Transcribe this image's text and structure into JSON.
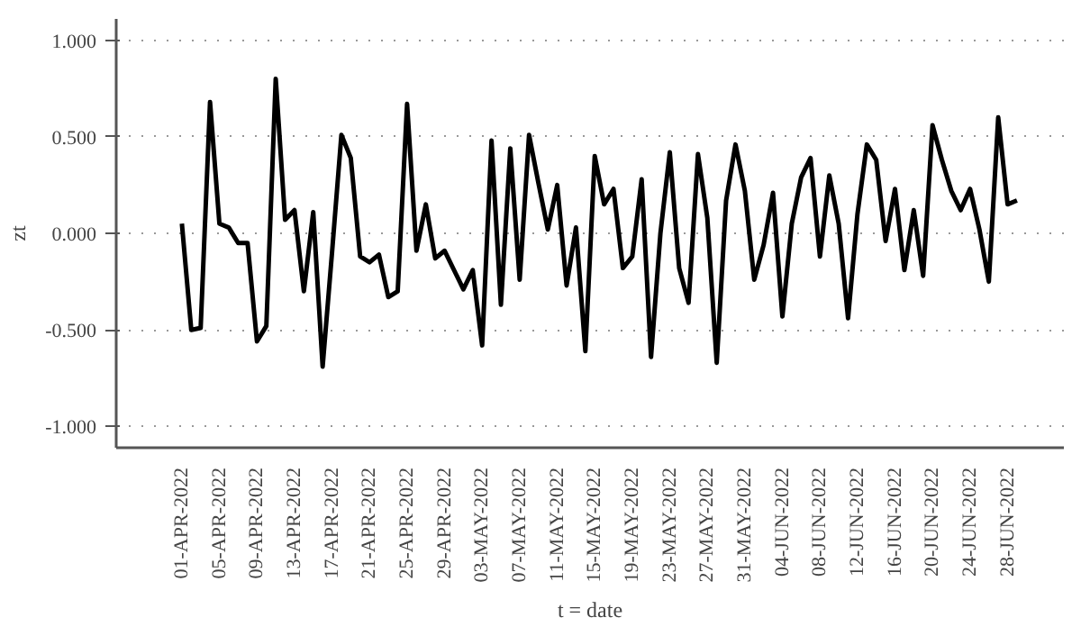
{
  "chart_data": {
    "type": "line",
    "xlabel": "t = date",
    "ylabel": "zt",
    "x": [
      "2022-04-01",
      "2022-04-02",
      "2022-04-03",
      "2022-04-04",
      "2022-04-05",
      "2022-04-06",
      "2022-04-07",
      "2022-04-08",
      "2022-04-09",
      "2022-04-10",
      "2022-04-11",
      "2022-04-12",
      "2022-04-13",
      "2022-04-14",
      "2022-04-15",
      "2022-04-16",
      "2022-04-17",
      "2022-04-18",
      "2022-04-19",
      "2022-04-20",
      "2022-04-21",
      "2022-04-22",
      "2022-04-23",
      "2022-04-24",
      "2022-04-25",
      "2022-04-26",
      "2022-04-27",
      "2022-04-28",
      "2022-04-29",
      "2022-04-30",
      "2022-05-01",
      "2022-05-02",
      "2022-05-03",
      "2022-05-04",
      "2022-05-05",
      "2022-05-06",
      "2022-05-07",
      "2022-05-08",
      "2022-05-09",
      "2022-05-10",
      "2022-05-11",
      "2022-05-12",
      "2022-05-13",
      "2022-05-14",
      "2022-05-15",
      "2022-05-16",
      "2022-05-17",
      "2022-05-18",
      "2022-05-19",
      "2022-05-20",
      "2022-05-21",
      "2022-05-22",
      "2022-05-23",
      "2022-05-24",
      "2022-05-25",
      "2022-05-26",
      "2022-05-27",
      "2022-05-28",
      "2022-05-29",
      "2022-05-30",
      "2022-05-31",
      "2022-06-01",
      "2022-06-02",
      "2022-06-03",
      "2022-06-04",
      "2022-06-05",
      "2022-06-06",
      "2022-06-07",
      "2022-06-08",
      "2022-06-09",
      "2022-06-10",
      "2022-06-11",
      "2022-06-12",
      "2022-06-13",
      "2022-06-14",
      "2022-06-15",
      "2022-06-16",
      "2022-06-17",
      "2022-06-18",
      "2022-06-19",
      "2022-06-20",
      "2022-06-21",
      "2022-06-22",
      "2022-06-23",
      "2022-06-24",
      "2022-06-25",
      "2022-06-26",
      "2022-06-27",
      "2022-06-28",
      "2022-06-29"
    ],
    "series": [
      {
        "color": "#000000",
        "values": [
          0.05,
          -0.5,
          -0.49,
          0.68,
          0.05,
          0.03,
          -0.05,
          -0.05,
          -0.56,
          -0.48,
          0.8,
          0.07,
          0.12,
          -0.3,
          0.11,
          -0.69,
          -0.1,
          0.51,
          0.39,
          -0.12,
          -0.15,
          -0.11,
          -0.33,
          -0.3,
          0.67,
          -0.09,
          0.15,
          -0.13,
          -0.09,
          -0.19,
          -0.29,
          -0.19,
          -0.58,
          0.48,
          -0.37,
          0.44,
          -0.24,
          0.51,
          0.26,
          0.02,
          0.25,
          -0.27,
          0.03,
          -0.61,
          0.4,
          0.15,
          0.23,
          -0.18,
          -0.12,
          0.28,
          -0.64,
          0.0,
          0.42,
          -0.18,
          -0.36,
          0.41,
          0.08,
          -0.67,
          0.17,
          0.46,
          0.22,
          -0.24,
          -0.06,
          0.21,
          -0.43,
          0.05,
          0.29,
          0.39,
          -0.12,
          0.3,
          0.05,
          -0.44,
          0.1,
          0.46,
          0.38,
          -0.04,
          0.23,
          -0.19,
          0.12,
          -0.22,
          0.56,
          0.38,
          0.22,
          0.12,
          0.23,
          0.02,
          -0.25,
          0.6,
          0.15,
          0.17
        ]
      }
    ],
    "xlim": [
      "2022-03-25",
      "2022-07-04"
    ],
    "xticks": [
      {
        "value": "2022-04-01",
        "label": "01-APR-2022"
      },
      {
        "value": "2022-04-05",
        "label": "05-APR-2022"
      },
      {
        "value": "2022-04-09",
        "label": "09-APR-2022"
      },
      {
        "value": "2022-04-13",
        "label": "13-APR-2022"
      },
      {
        "value": "2022-04-17",
        "label": "17-APR-2022"
      },
      {
        "value": "2022-04-21",
        "label": "21-APR-2022"
      },
      {
        "value": "2022-04-25",
        "label": "25-APR-2022"
      },
      {
        "value": "2022-04-29",
        "label": "29-APR-2022"
      },
      {
        "value": "2022-05-03",
        "label": "03-MAY-2022"
      },
      {
        "value": "2022-05-07",
        "label": "07-MAY-2022"
      },
      {
        "value": "2022-05-11",
        "label": "11-MAY-2022"
      },
      {
        "value": "2022-05-15",
        "label": "15-MAY-2022"
      },
      {
        "value": "2022-05-19",
        "label": "19-MAY-2022"
      },
      {
        "value": "2022-05-23",
        "label": "23-MAY-2022"
      },
      {
        "value": "2022-05-27",
        "label": "27-MAY-2022"
      },
      {
        "value": "2022-05-31",
        "label": "31-MAY-2022"
      },
      {
        "value": "2022-06-04",
        "label": "04-JUN-2022"
      },
      {
        "value": "2022-06-08",
        "label": "08-JUN-2022"
      },
      {
        "value": "2022-06-12",
        "label": "12-JUN-2022"
      },
      {
        "value": "2022-06-16",
        "label": "16-JUN-2022"
      },
      {
        "value": "2022-06-20",
        "label": "20-JUN-2022"
      },
      {
        "value": "2022-06-24",
        "label": "24-JUN-2022"
      },
      {
        "value": "2022-06-28",
        "label": "28-JUN-2022"
      }
    ],
    "ylim": [
      -1.11,
      1.11
    ],
    "yticks": [
      {
        "value": -1,
        "label": "-1.000"
      },
      {
        "value": -0.5,
        "label": "-0.500"
      },
      {
        "value": 0,
        "label": "0.000"
      },
      {
        "value": 0.5,
        "label": "0.500"
      },
      {
        "value": 1,
        "label": "1.000"
      }
    ],
    "grid": "y",
    "line_style": "solid",
    "marker": "none"
  }
}
